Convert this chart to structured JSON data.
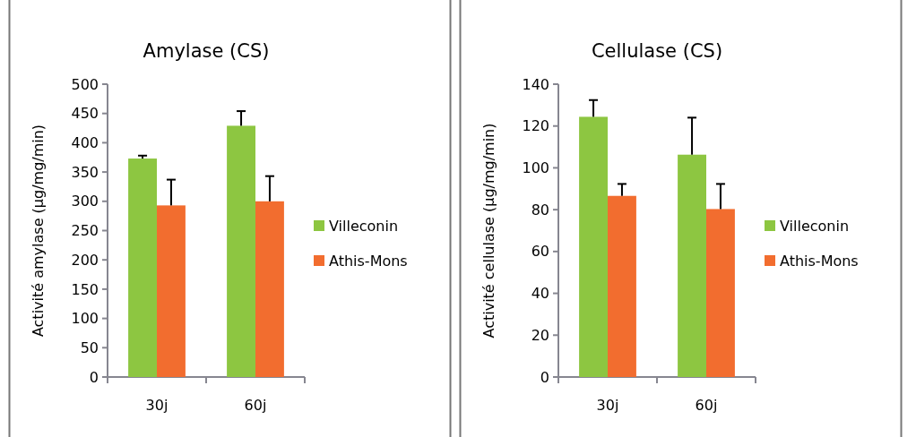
{
  "chart_data": [
    {
      "type": "bar",
      "title": "Amylase (CS)",
      "ylabel": "Activité amylase  (µg/mg/min)",
      "categories": [
        "30j",
        "60j"
      ],
      "ylim": [
        0,
        500
      ],
      "yticks": [
        0,
        50,
        100,
        150,
        200,
        250,
        300,
        350,
        400,
        450,
        500
      ],
      "legend": "right",
      "series": [
        {
          "name": "Villeconin",
          "color": "#8dc641",
          "values": [
            373,
            429
          ],
          "errors": [
            [
              373,
              378
            ],
            [
              429,
              454
            ]
          ]
        },
        {
          "name": "Athis-Mons",
          "color": "#f26d2f",
          "values": [
            293,
            300
          ],
          "errors": [
            [
              293,
              337
            ],
            [
              300,
              343
            ]
          ]
        }
      ]
    },
    {
      "type": "bar",
      "title": "Cellulase (CS)",
      "ylabel": "Activité cellulase  (µg/mg/min)",
      "categories": [
        "30j",
        "60j"
      ],
      "ylim": [
        0,
        140
      ],
      "yticks": [
        0,
        20,
        40,
        60,
        80,
        100,
        120,
        140
      ],
      "legend": "right",
      "series": [
        {
          "name": "Villeconin",
          "color": "#8dc641",
          "values": [
            124.4,
            106.3
          ],
          "errors": [
            [
              124.4,
              132.4
            ],
            [
              106.3,
              124
            ]
          ]
        },
        {
          "name": "Athis-Mons",
          "color": "#f26d2f",
          "values": [
            86.6,
            80.3
          ],
          "errors": [
            [
              86.6,
              92.3
            ],
            [
              80.3,
              92.3
            ]
          ]
        }
      ]
    }
  ]
}
